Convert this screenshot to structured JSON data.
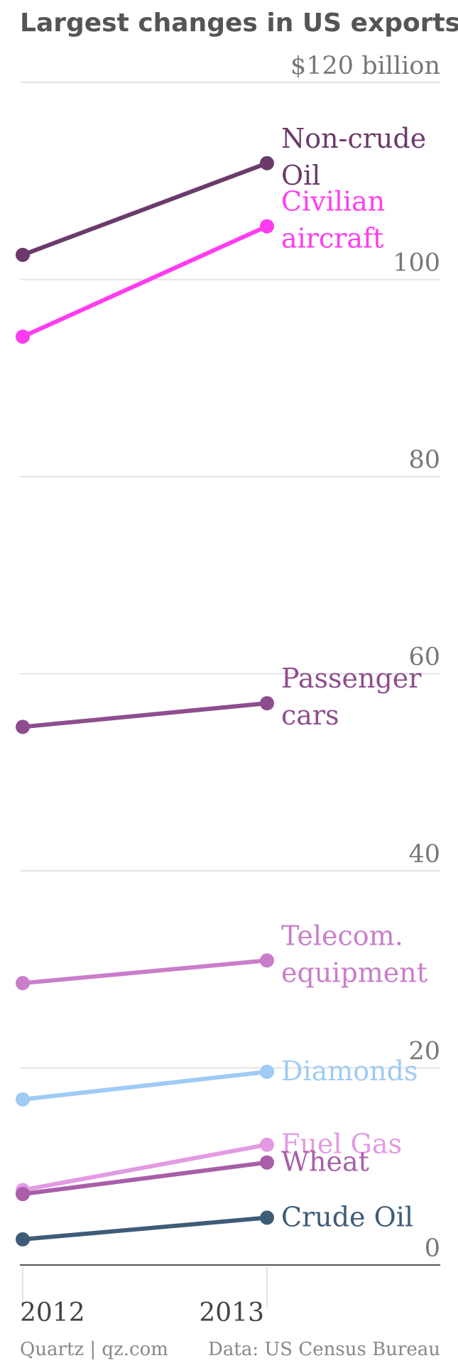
{
  "chart_data": {
    "type": "line",
    "title": "Largest changes in US exports",
    "y_unit_label": "$120 billion",
    "ylim": [
      0,
      120
    ],
    "y_ticks": [
      {
        "value": 120,
        "label": "$120 billion"
      },
      {
        "value": 100,
        "label": "100"
      },
      {
        "value": 80,
        "label": "80"
      },
      {
        "value": 60,
        "label": "60"
      },
      {
        "value": 40,
        "label": "40"
      },
      {
        "value": 20,
        "label": "20"
      },
      {
        "value": 0,
        "label": "0"
      }
    ],
    "x": [
      "2012",
      "2013"
    ],
    "grid": true,
    "series": [
      {
        "name": "Non-crude Oil",
        "label_lines": [
          "Non-crude",
          "Oil"
        ],
        "color": "#6b3a6b",
        "values": [
          102.5,
          111.8
        ]
      },
      {
        "name": "Civilian aircraft",
        "label_lines": [
          "Civilian",
          "aircraft"
        ],
        "color": "#ff3cf0",
        "values": [
          94.2,
          105.4
        ]
      },
      {
        "name": "Passenger cars",
        "label_lines": [
          "Passenger",
          "cars"
        ],
        "color": "#8e4e8e",
        "values": [
          54.6,
          57.0
        ]
      },
      {
        "name": "Telecom. equipment",
        "label_lines": [
          "Telecom.",
          "equipment"
        ],
        "color": "#c97ec9",
        "values": [
          28.6,
          30.9
        ]
      },
      {
        "name": "Diamonds",
        "label_lines": [
          "Diamonds"
        ],
        "color": "#9fcbf5",
        "values": [
          16.8,
          19.6
        ]
      },
      {
        "name": "Fuel Gas",
        "label_lines": [
          "Fuel Gas"
        ],
        "color": "#e39ae3",
        "values": [
          7.6,
          12.2
        ]
      },
      {
        "name": "Wheat",
        "label_lines": [
          "Wheat"
        ],
        "color": "#a85ea8",
        "values": [
          7.2,
          10.4
        ]
      },
      {
        "name": "Crude Oil",
        "label_lines": [
          "Crude Oil"
        ],
        "color": "#3d5c78",
        "values": [
          2.6,
          4.8
        ]
      }
    ]
  },
  "footer": {
    "source": "Quartz | qz.com",
    "data": "Data: US Census Bureau"
  },
  "colors": {
    "gridline": "#e4e4e4",
    "baseline": "#555555",
    "title": "#555555",
    "tick": "#777777"
  }
}
